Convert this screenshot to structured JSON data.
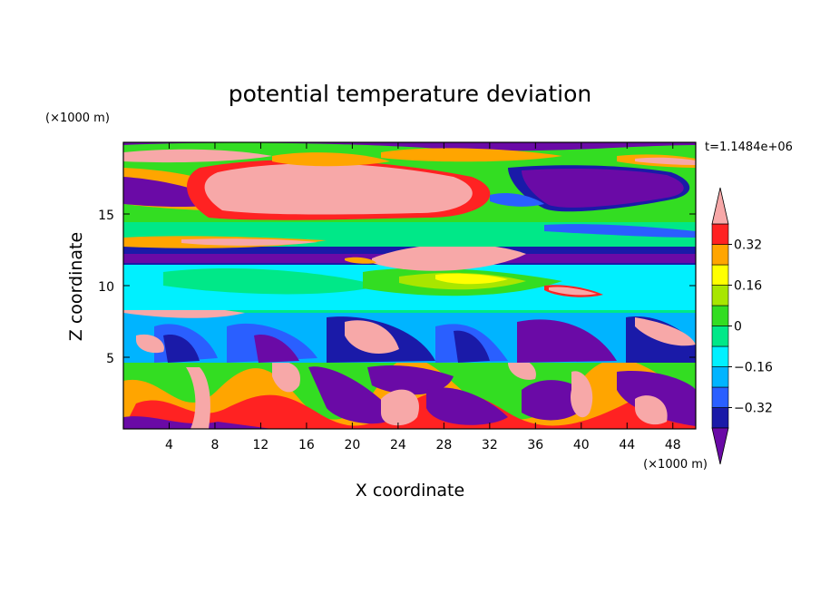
{
  "chart_data": {
    "type": "heatmap",
    "title": "potential temperature deviation",
    "xlabel": "X coordinate",
    "ylabel": "Z coordinate",
    "x_unit": "(×1000 m)",
    "y_unit": "(×1000 m)",
    "time_label": "t=1.1484e+06",
    "xlim": [
      0,
      50
    ],
    "ylim": [
      0,
      20
    ],
    "x_ticks": [
      4,
      8,
      12,
      16,
      20,
      24,
      28,
      32,
      36,
      40,
      44,
      48
    ],
    "y_ticks": [
      5,
      10,
      15
    ],
    "colorbar": {
      "levels": [
        -0.4,
        -0.32,
        -0.24,
        -0.16,
        -0.08,
        0,
        0.08,
        0.16,
        0.24,
        0.32,
        0.4
      ],
      "tick_labels": [
        "0.32",
        "0.16",
        "0",
        "−0.16",
        "−0.32"
      ],
      "tick_values": [
        0.32,
        0.16,
        0,
        -0.16,
        -0.32
      ],
      "colors_low_to_high": [
        "#1a1aa8",
        "#2a5fff",
        "#00b4ff",
        "#00f0ff",
        "#00e888",
        "#33dd22",
        "#a8e600",
        "#ffff00",
        "#ffa500",
        "#ff2222"
      ],
      "under_color": "#6a0aa6",
      "over_color": "#f7a8a8"
    }
  }
}
